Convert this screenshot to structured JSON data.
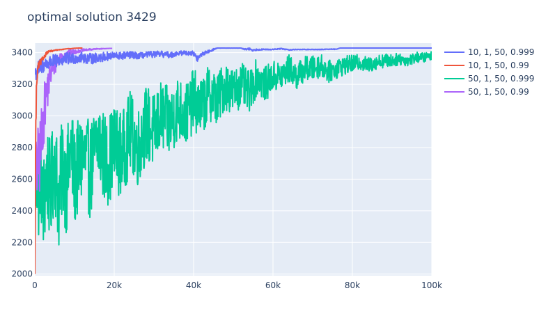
{
  "chart_data": {
    "type": "line",
    "title": "optimal solution 3429",
    "xlabel": "",
    "ylabel": "",
    "xlim": [
      0,
      100000
    ],
    "ylim": [
      1990,
      3460
    ],
    "x_ticks": [
      0,
      20000,
      40000,
      60000,
      80000,
      100000
    ],
    "x_tick_labels": [
      "0",
      "20k",
      "40k",
      "60k",
      "80k",
      "100k"
    ],
    "y_ticks": [
      2000,
      2200,
      2400,
      2600,
      2800,
      3000,
      3200,
      3400
    ],
    "y_tick_labels": [
      "2000",
      "2200",
      "2400",
      "2600",
      "2800",
      "3000",
      "3200",
      "3400"
    ],
    "grid": true,
    "legend_position": "top-right",
    "series": [
      {
        "name": "50, 1, 50, 0.999",
        "color": "#00cc96",
        "x": [
          0,
          500,
          1000,
          1500,
          2000,
          3000,
          4000,
          5000,
          6000,
          7000,
          8000,
          9000,
          10000,
          12000,
          14000,
          16000,
          18000,
          20000,
          22000,
          24000,
          26000,
          28000,
          30000,
          32000,
          34000,
          36000,
          38000,
          40000,
          42000,
          44000,
          46000,
          48000,
          50000,
          52000,
          54000,
          56000,
          58000,
          60000,
          62000,
          64000,
          66000,
          68000,
          70000,
          72000,
          74000,
          76000,
          78000,
          80000,
          82000,
          84000,
          86000,
          88000,
          90000,
          92000,
          94000,
          96000,
          98000,
          100000
        ],
        "y": [
          2350,
          2600,
          2500,
          2700,
          2380,
          2650,
          2500,
          2750,
          2450,
          2700,
          2550,
          2800,
          2600,
          2750,
          2650,
          2850,
          2700,
          2800,
          2750,
          2900,
          2800,
          2950,
          2900,
          3000,
          2950,
          3050,
          3000,
          3100,
          3050,
          3150,
          3100,
          3200,
          3150,
          3200,
          3150,
          3250,
          3200,
          3250,
          3250,
          3300,
          3250,
          3300,
          3300,
          3320,
          3280,
          3300,
          3320,
          3330,
          3340,
          3320,
          3340,
          3350,
          3350,
          3360,
          3350,
          3370,
          3370,
          3380
        ],
        "noise_amplitude": [
          0,
          250,
          300,
          300,
          320,
          330,
          320,
          330,
          320,
          320,
          320,
          320,
          310,
          300,
          300,
          300,
          290,
          280,
          270,
          260,
          250,
          250,
          240,
          230,
          220,
          210,
          200,
          200,
          190,
          180,
          170,
          160,
          150,
          140,
          130,
          120,
          110,
          100,
          95,
          90,
          85,
          80,
          80,
          75,
          70,
          65,
          60,
          55,
          50,
          50,
          45,
          45,
          40,
          40,
          35,
          35,
          30,
          30
        ]
      },
      {
        "name": "50, 1, 50, 0.99",
        "color": "#ab63fa",
        "x": [
          0,
          500,
          1000,
          1500,
          2000,
          2500,
          3000,
          3500,
          4000,
          4500,
          5000,
          5500,
          6000,
          7000,
          8000,
          9000,
          10000,
          11000,
          12000,
          13000,
          14000,
          15000,
          16000,
          17000,
          18000,
          19000,
          19500
        ],
        "y": [
          2550,
          2650,
          2700,
          2800,
          2950,
          3050,
          3150,
          3200,
          3260,
          3300,
          3320,
          3340,
          3360,
          3380,
          3390,
          3400,
          3405,
          3410,
          3415,
          3418,
          3420,
          3422,
          3424,
          3425,
          3426,
          3427,
          3427
        ],
        "noise_amplitude": [
          250,
          250,
          250,
          220,
          200,
          170,
          140,
          110,
          90,
          70,
          60,
          50,
          40,
          30,
          25,
          20,
          15,
          10,
          8,
          6,
          5,
          4,
          3,
          2,
          1,
          0,
          0
        ]
      },
      {
        "name": "10, 1, 50, 0.999",
        "color": "#636efa",
        "x": [
          0,
          1000,
          2000,
          4000,
          6000,
          8000,
          10000,
          12000,
          14000,
          16000,
          18000,
          20000,
          22000,
          24000,
          26000,
          28000,
          30000,
          32000,
          34000,
          36000,
          38000,
          40000,
          41000,
          42000,
          43000,
          44000,
          45000,
          46000,
          48000,
          50000,
          52000,
          53000,
          54000,
          55000,
          56000,
          58000,
          60000,
          62000,
          64000,
          66000,
          68000,
          70000,
          72000,
          74000,
          76000,
          77000,
          78000,
          80000,
          85000,
          90000,
          95000,
          100000
        ],
        "y": [
          3270,
          3300,
          3320,
          3340,
          3350,
          3360,
          3365,
          3370,
          3360,
          3370,
          3375,
          3380,
          3380,
          3385,
          3380,
          3385,
          3390,
          3390,
          3385,
          3395,
          3400,
          3395,
          3360,
          3390,
          3400,
          3410,
          3420,
          3430,
          3430,
          3430,
          3430,
          3420,
          3425,
          3415,
          3420,
          3420,
          3420,
          3425,
          3418,
          3420,
          3420,
          3420,
          3420,
          3422,
          3422,
          3430,
          3430,
          3430,
          3430,
          3430,
          3430,
          3430
        ],
        "noise_amplitude": [
          60,
          55,
          50,
          45,
          40,
          40,
          35,
          35,
          35,
          30,
          30,
          25,
          25,
          25,
          20,
          20,
          20,
          20,
          20,
          15,
          15,
          15,
          20,
          15,
          10,
          8,
          6,
          2,
          2,
          2,
          2,
          6,
          8,
          6,
          5,
          3,
          3,
          3,
          3,
          2,
          2,
          2,
          2,
          2,
          2,
          0,
          0,
          0,
          0,
          0,
          0,
          0
        ]
      },
      {
        "name": "10, 1, 50, 0.99",
        "color": "#ef553b",
        "x": [
          0,
          200,
          400,
          600,
          800,
          1000,
          1500,
          2000,
          2500,
          3000,
          3500,
          4000,
          4500,
          5000,
          6000,
          7000,
          8000,
          9000,
          10000,
          11000,
          12000
        ],
        "y": [
          2000,
          2850,
          3150,
          3250,
          3300,
          3320,
          3340,
          3360,
          3380,
          3400,
          3405,
          3410,
          3410,
          3415,
          3418,
          3420,
          3425,
          3425,
          3428,
          3429,
          3429
        ],
        "noise_amplitude": [
          0,
          100,
          60,
          40,
          30,
          25,
          20,
          15,
          12,
          10,
          8,
          6,
          4,
          3,
          2,
          2,
          1,
          1,
          0,
          0,
          0
        ]
      }
    ]
  }
}
